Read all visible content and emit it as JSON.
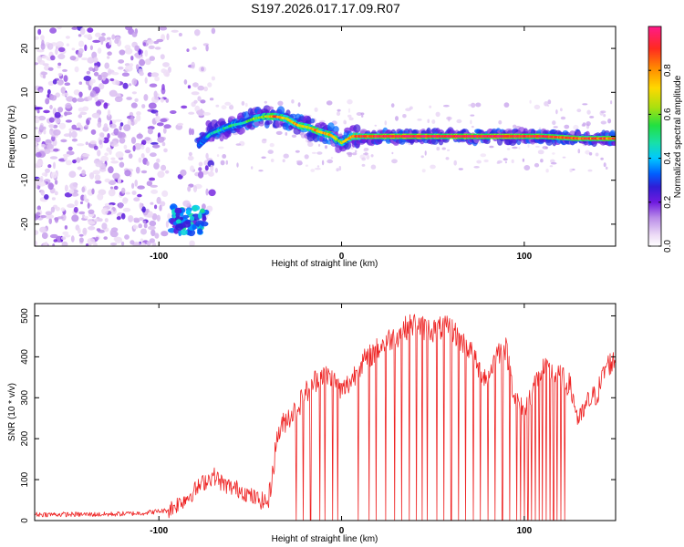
{
  "figure": {
    "title": "S197.2026.017.17.09.R07"
  },
  "chart_data": [
    {
      "type": "heatmap",
      "xlabel": "Height of straight line (km)",
      "ylabel": "Frequency (Hz)",
      "xlim": [
        -168,
        150
      ],
      "ylim": [
        -25,
        25
      ],
      "xticks": [
        -100,
        0,
        100
      ],
      "xtick_labels": [
        "-100",
        "0",
        "100"
      ],
      "yticks": [
        -20,
        -10,
        0,
        10,
        20
      ],
      "ytick_labels": [
        "-20",
        "-10",
        "0",
        "10",
        "20"
      ],
      "colorbar": {
        "label": "Normalized spectral amplitude",
        "range": [
          0,
          1
        ],
        "ticks": [
          0.0,
          0.2,
          0.4,
          0.6,
          0.8
        ],
        "tick_labels": [
          "0.0",
          "0.2",
          "0.4",
          "0.6",
          "0.8"
        ]
      },
      "ridge": {
        "x": [
          -78,
          -72,
          -66,
          -60,
          -54,
          -48,
          -42,
          -36,
          -30,
          -24,
          -18,
          -12,
          -6,
          0,
          6,
          12,
          30,
          50,
          70,
          90,
          110,
          130,
          150
        ],
        "freq": [
          -2,
          0.5,
          1.5,
          2.5,
          3,
          4,
          4.5,
          4.5,
          4,
          2.5,
          2,
          1,
          0.3,
          -1.5,
          0,
          0,
          0,
          0,
          0,
          0,
          0,
          -0.5,
          -0.5
        ],
        "amplitude": [
          0.35,
          0.45,
          0.45,
          0.5,
          0.5,
          0.6,
          0.65,
          0.85,
          0.7,
          0.75,
          0.7,
          0.8,
          0.75,
          0.6,
          0.8,
          0.9,
          0.95,
          0.95,
          0.95,
          0.95,
          0.9,
          0.85,
          0.85
        ]
      },
      "low_freq_cluster": {
        "x_range": [
          -93,
          -74
        ],
        "freq_range": [
          -22,
          -16
        ]
      }
    },
    {
      "type": "line",
      "xlabel": "Height of straight line (km)",
      "ylabel": "SNR (10 * v/v)",
      "xlim": [
        -168,
        150
      ],
      "ylim": [
        0,
        530
      ],
      "xticks": [
        -100,
        0,
        100
      ],
      "xtick_labels": [
        "-100",
        "0",
        "100"
      ],
      "yticks": [
        0,
        100,
        200,
        300,
        400,
        500
      ],
      "ytick_labels": [
        "0",
        "100",
        "200",
        "300",
        "400",
        "500"
      ],
      "series": [
        {
          "name": "SNR",
          "color": "#ee2222",
          "x": [
            -168,
            -150,
            -130,
            -110,
            -95,
            -90,
            -85,
            -80,
            -75,
            -70,
            -65,
            -60,
            -55,
            -50,
            -45,
            -40,
            -35,
            -30,
            -25,
            -20,
            -15,
            -10,
            -5,
            0,
            5,
            10,
            15,
            20,
            25,
            30,
            35,
            40,
            45,
            50,
            55,
            60,
            65,
            70,
            75,
            80,
            85,
            90,
            95,
            100,
            105,
            110,
            115,
            120,
            125,
            130,
            135,
            140,
            145,
            150
          ],
          "y": [
            15,
            15,
            15,
            18,
            25,
            40,
            55,
            75,
            95,
            110,
            90,
            80,
            75,
            60,
            50,
            45,
            210,
            250,
            270,
            310,
            340,
            360,
            345,
            315,
            340,
            380,
            400,
            420,
            440,
            450,
            470,
            480,
            470,
            465,
            470,
            470,
            440,
            420,
            370,
            350,
            410,
            420,
            300,
            260,
            330,
            370,
            360,
            350,
            330,
            240,
            290,
            310,
            380,
            390
          ]
        }
      ],
      "dropouts_x": [
        -25,
        -21,
        -17,
        -12,
        -9,
        -5,
        -2,
        9,
        15,
        19,
        24,
        29,
        33,
        37,
        41,
        44,
        47,
        52,
        56,
        60,
        64,
        68,
        72,
        76,
        80,
        84,
        88,
        92,
        96,
        98,
        100,
        102,
        104,
        106,
        108,
        110,
        112,
        114,
        116,
        118,
        120,
        122
      ]
    }
  ]
}
